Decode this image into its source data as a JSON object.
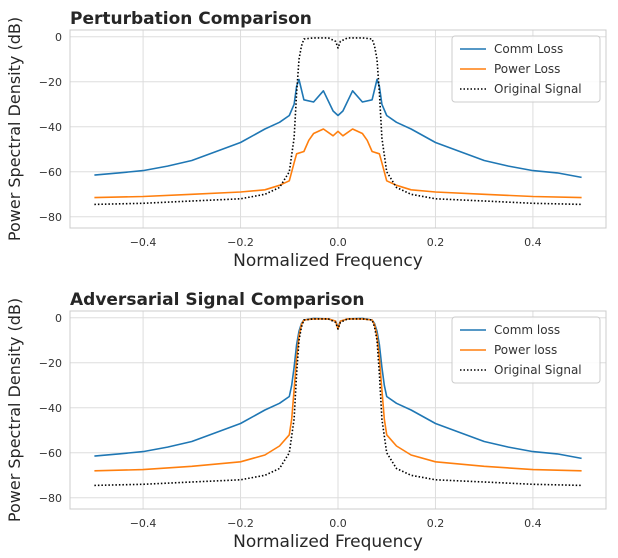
{
  "chart_data": [
    {
      "type": "line",
      "title": "Perturbation Comparison",
      "xlabel": "Normalized Frequency",
      "ylabel": "Power Spectral Density (dB)",
      "xlim": [
        -0.55,
        0.55
      ],
      "ylim": [
        -85,
        3
      ],
      "xticks": [
        -0.4,
        -0.2,
        0.0,
        0.2,
        0.4
      ],
      "xtick_labels": [
        "−0.4",
        "−0.2",
        "0.0",
        "0.2",
        "0.4"
      ],
      "yticks": [
        0,
        -20,
        -40,
        -60,
        -80
      ],
      "ytick_labels": [
        "0",
        "−20",
        "−40",
        "−60",
        "−80"
      ],
      "grid": true,
      "legend_position": "top-right",
      "series": [
        {
          "name": "Comm Loss",
          "color": "#1f77b4",
          "style": "solid",
          "x": [
            -0.5,
            -0.45,
            -0.4,
            -0.35,
            -0.3,
            -0.25,
            -0.2,
            -0.15,
            -0.12,
            -0.1,
            -0.09,
            -0.085,
            -0.08,
            -0.07,
            -0.05,
            -0.03,
            -0.01,
            0.0,
            0.01,
            0.03,
            0.05,
            0.07,
            0.08,
            0.085,
            0.09,
            0.1,
            0.12,
            0.15,
            0.2,
            0.25,
            0.3,
            0.35,
            0.4,
            0.45,
            0.5
          ],
          "y": [
            -61.5,
            -60.5,
            -59.5,
            -57.5,
            -55,
            -51,
            -47,
            -41,
            -38,
            -35,
            -30,
            -22,
            -19,
            -28,
            -29,
            -24,
            -33,
            -35,
            -33,
            -24,
            -29,
            -28,
            -19,
            -22,
            -30,
            -35,
            -38,
            -41,
            -47,
            -51,
            -55,
            -57.5,
            -59.5,
            -60.5,
            -62.5
          ]
        },
        {
          "name": "Power Loss",
          "color": "#ff7f0e",
          "style": "solid",
          "x": [
            -0.5,
            -0.4,
            -0.3,
            -0.2,
            -0.15,
            -0.12,
            -0.1,
            -0.095,
            -0.09,
            -0.085,
            -0.07,
            -0.06,
            -0.05,
            -0.03,
            -0.01,
            0.0,
            0.01,
            0.03,
            0.05,
            0.06,
            0.07,
            0.085,
            0.09,
            0.095,
            0.1,
            0.12,
            0.15,
            0.2,
            0.3,
            0.4,
            0.5
          ],
          "y": [
            -71.5,
            -71,
            -70,
            -69,
            -68,
            -66,
            -64,
            -60,
            -56,
            -52,
            -51,
            -46,
            -43,
            -41,
            -44,
            -42,
            -44,
            -41,
            -43,
            -46,
            -51,
            -52,
            -56,
            -60,
            -64,
            -66,
            -68,
            -69,
            -70,
            -71,
            -71.5
          ]
        },
        {
          "name": "Original Signal",
          "color": "#000000",
          "style": "dotted",
          "x": [
            -0.5,
            -0.4,
            -0.3,
            -0.2,
            -0.15,
            -0.12,
            -0.1,
            -0.09,
            -0.085,
            -0.08,
            -0.075,
            -0.07,
            -0.05,
            -0.02,
            -0.005,
            0.0,
            0.005,
            0.02,
            0.05,
            0.07,
            0.075,
            0.08,
            0.085,
            0.09,
            0.1,
            0.12,
            0.15,
            0.2,
            0.3,
            0.4,
            0.5
          ],
          "y": [
            -74.5,
            -74,
            -73,
            -72,
            -70,
            -67,
            -60,
            -45,
            -25,
            -10,
            -4,
            -1,
            -0.5,
            -0.5,
            -2,
            -5,
            -2,
            -0.5,
            -0.5,
            -1,
            -4,
            -10,
            -25,
            -45,
            -60,
            -67,
            -70,
            -72,
            -73,
            -74,
            -74.5
          ]
        }
      ]
    },
    {
      "type": "line",
      "title": "Adversarial Signal Comparison",
      "xlabel": "Normalized Frequency",
      "ylabel": "Power Spectral Density (dB)",
      "xlim": [
        -0.55,
        0.55
      ],
      "ylim": [
        -85,
        3
      ],
      "xticks": [
        -0.4,
        -0.2,
        0.0,
        0.2,
        0.4
      ],
      "xtick_labels": [
        "−0.4",
        "−0.2",
        "0.0",
        "0.2",
        "0.4"
      ],
      "yticks": [
        0,
        -20,
        -40,
        -60,
        -80
      ],
      "ytick_labels": [
        "0",
        "−20",
        "−40",
        "−60",
        "−80"
      ],
      "grid": true,
      "legend_position": "top-right",
      "series": [
        {
          "name": "Comm loss",
          "color": "#1f77b4",
          "style": "solid",
          "x": [
            -0.5,
            -0.45,
            -0.4,
            -0.35,
            -0.3,
            -0.25,
            -0.2,
            -0.15,
            -0.12,
            -0.1,
            -0.095,
            -0.09,
            -0.085,
            -0.08,
            -0.075,
            -0.07,
            -0.05,
            -0.02,
            -0.005,
            0.0,
            0.005,
            0.02,
            0.05,
            0.07,
            0.075,
            0.08,
            0.085,
            0.09,
            0.095,
            0.1,
            0.12,
            0.15,
            0.2,
            0.25,
            0.3,
            0.35,
            0.4,
            0.45,
            0.5
          ],
          "y": [
            -61.5,
            -60.5,
            -59.5,
            -57.5,
            -55,
            -51,
            -47,
            -41,
            -38,
            -35,
            -30,
            -22,
            -12,
            -6,
            -2.5,
            -1,
            -0.3,
            -0.5,
            -1.5,
            -4.5,
            -1.5,
            -0.5,
            -0.3,
            -1,
            -2.5,
            -6,
            -12,
            -22,
            -30,
            -35,
            -38,
            -41,
            -47,
            -51,
            -55,
            -57.5,
            -59.5,
            -60.5,
            -62.5
          ]
        },
        {
          "name": "Power loss",
          "color": "#ff7f0e",
          "style": "solid",
          "x": [
            -0.5,
            -0.4,
            -0.3,
            -0.2,
            -0.15,
            -0.12,
            -0.1,
            -0.095,
            -0.09,
            -0.085,
            -0.08,
            -0.075,
            -0.07,
            -0.05,
            -0.02,
            -0.005,
            0.0,
            0.005,
            0.02,
            0.05,
            0.07,
            0.075,
            0.08,
            0.085,
            0.09,
            0.095,
            0.1,
            0.12,
            0.15,
            0.2,
            0.3,
            0.4,
            0.5
          ],
          "y": [
            -68,
            -67.5,
            -66,
            -64,
            -61,
            -57,
            -52,
            -45,
            -32,
            -18,
            -8,
            -3,
            -1,
            -0.5,
            -0.5,
            -1.5,
            -5,
            -1.5,
            -0.5,
            -0.5,
            -1,
            -3,
            -8,
            -18,
            -32,
            -45,
            -52,
            -57,
            -61,
            -64,
            -66,
            -67.5,
            -68
          ]
        },
        {
          "name": "Original Signal",
          "color": "#000000",
          "style": "dotted",
          "x": [
            -0.5,
            -0.4,
            -0.3,
            -0.2,
            -0.15,
            -0.12,
            -0.1,
            -0.09,
            -0.085,
            -0.08,
            -0.075,
            -0.07,
            -0.05,
            -0.02,
            -0.005,
            0.0,
            0.005,
            0.02,
            0.05,
            0.07,
            0.075,
            0.08,
            0.085,
            0.09,
            0.1,
            0.12,
            0.15,
            0.2,
            0.3,
            0.4,
            0.5
          ],
          "y": [
            -74.5,
            -74,
            -73,
            -72,
            -70,
            -67,
            -60,
            -45,
            -25,
            -10,
            -4,
            -1,
            -0.5,
            -0.5,
            -2,
            -5,
            -2,
            -0.5,
            -0.5,
            -1,
            -4,
            -10,
            -25,
            -45,
            -60,
            -67,
            -70,
            -72,
            -73,
            -74,
            -74.5
          ]
        }
      ]
    }
  ]
}
